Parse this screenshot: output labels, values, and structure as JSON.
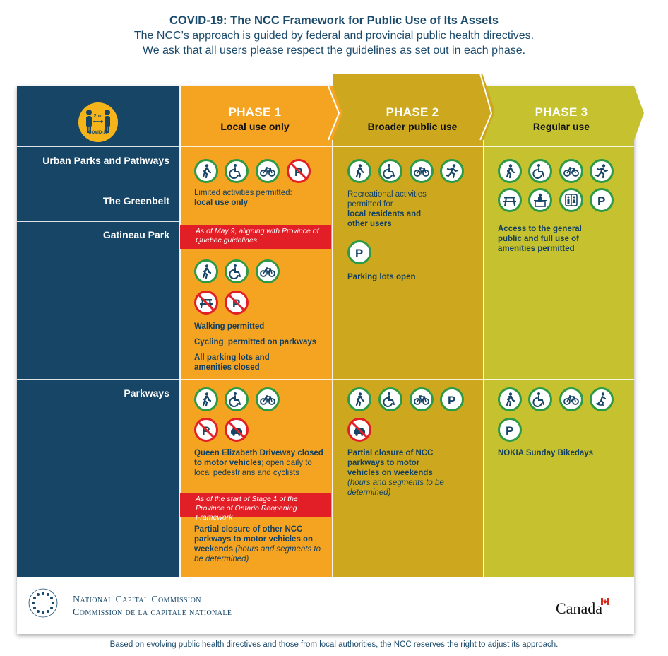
{
  "header": {
    "title": "COVID-19: The NCC Framework for Public Use of Its Assets",
    "subtitle_line1": "The NCC’s approach is guided by federal and provincial public health directives.",
    "subtitle_line2": "We ask that all users please respect the guidelines as set out in each phase."
  },
  "badge": {
    "distance": "2 m",
    "label": "COVID-19"
  },
  "phases": [
    {
      "name": "PHASE 1",
      "desc": "Local use only"
    },
    {
      "name": "PHASE 2",
      "desc": "Broader public use"
    },
    {
      "name": "PHASE 3",
      "desc": "Regular use"
    }
  ],
  "rows": {
    "urban": "Urban Parks and Pathways",
    "greenbelt": "The Greenbelt",
    "gatineau": "Gatineau Park",
    "parkways": "Parkways"
  },
  "phase1": {
    "urban_text1": "Limited activities permitted:",
    "urban_text2": "local use only",
    "gatineau_note": "As of May 9, aligning with Province of Quebec guidelines",
    "gatineau_text1": "Walking permitted",
    "gatineau_text2": "Cycling  permitted on parkways",
    "gatineau_text3": "All parking lots and amenities closed",
    "parkways_text1_bold": "Queen Elizabeth Driveway closed to motor vehicles",
    "parkways_text1_rest": "; open daily to local pedestrians and cyclists",
    "parkways_note": "As of the start of Stage 1 of the Province of Ontario Reopening Framework",
    "parkways_text2_bold": "Partial closure of other NCC parkways to motor vehicles on weekends",
    "parkways_text2_italic": " (hours and segments to be determined)"
  },
  "phase2": {
    "urban_text1": "Recreational activities permitted for",
    "urban_text2": "local residents and other users",
    "parking_text": "Parking lots open",
    "parkways_text_bold": "Partial closure of NCC parkways to motor vehicles on weekends",
    "parkways_text_italic": "(hours and segments to be determined)"
  },
  "phase3": {
    "urban_text": "Access to the general public and full use of amenities permitted",
    "parkways_text": "NOKIA Sunday Bikedays"
  },
  "logo": {
    "line1": "National Capital Commission",
    "line2": "Commission de la capitale nationale",
    "wordmark": "Canada"
  },
  "colors": {
    "navy": "#174566",
    "phase1": "#f5a422",
    "phase2": "#cda81e",
    "phase3": "#c5c12f",
    "permit_green": "#2e9a45",
    "ban_red": "#e21f26"
  },
  "footer": "Based on evolving public health directives and those from local authorities, the NCC reserves the right to adjust its approach."
}
